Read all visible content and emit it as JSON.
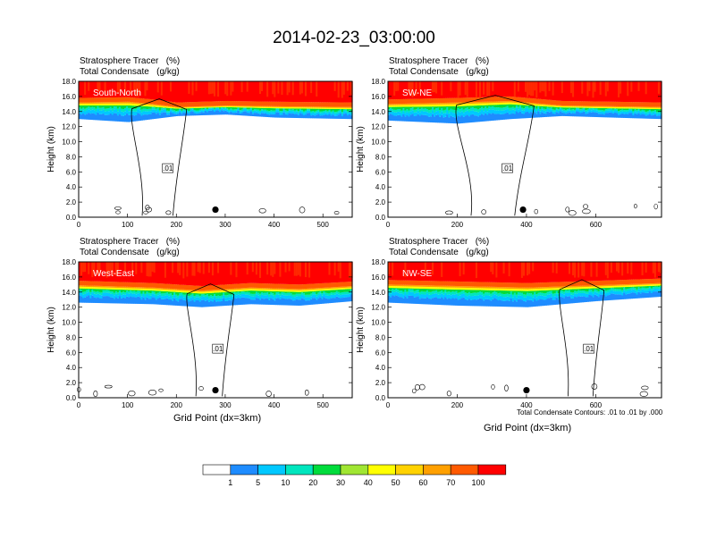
{
  "title": "2014-02-23_03:00:00",
  "panel_labels": {
    "line1": "Stratosphere Tracer   (%)",
    "line2": "Total Condensate   (g/kg)"
  },
  "contour_note": "Total Condensate Contours: .01 to .01 by .000",
  "colors": {
    "levels": [
      "#ffffff",
      "#1e8cff",
      "#00c8ff",
      "#00e6be",
      "#00dc3c",
      "#a0e632",
      "#ffff00",
      "#ffd200",
      "#ffa000",
      "#ff5a00",
      "#ff0000"
    ],
    "contour": "#000000"
  },
  "colorbar_labels": [
    "1",
    "5",
    "10",
    "20",
    "30",
    "40",
    "50",
    "60",
    "70",
    "100"
  ],
  "chart_data": [
    {
      "type": "heatmap",
      "name": "South-North",
      "ylabel": "Height (km)",
      "xlabel": "",
      "xlim": [
        0,
        560
      ],
      "ylim": [
        0,
        18
      ],
      "xticks": [
        "0",
        "100",
        "200",
        "300",
        "400",
        "500"
      ],
      "yticks": [
        "0.0",
        "2.0",
        "4.0",
        "6.0",
        "8.0",
        "10.0",
        "12.0",
        "14.0",
        "16.0",
        "18.0"
      ],
      "contour_label": ".01",
      "tropopause": [
        [
          0,
          15.2
        ],
        [
          100,
          15.3
        ],
        [
          150,
          15.0
        ],
        [
          200,
          14.6
        ],
        [
          300,
          14.8
        ],
        [
          400,
          14.7
        ],
        [
          560,
          14.6
        ]
      ],
      "anvil_base": [
        [
          0,
          13.0
        ],
        [
          100,
          12.6
        ],
        [
          200,
          13.4
        ],
        [
          300,
          13.6
        ],
        [
          400,
          13.2
        ],
        [
          560,
          13.0
        ]
      ],
      "storm_column": [
        130,
        200
      ],
      "marker_x": 280
    },
    {
      "type": "heatmap",
      "name": "SW-NE",
      "ylabel": "Height (km)",
      "xlabel": "",
      "xlim": [
        0,
        790
      ],
      "ylim": [
        0,
        18
      ],
      "xticks": [
        "0",
        "200",
        "400",
        "600"
      ],
      "yticks": [
        "0.0",
        "2.0",
        "4.0",
        "6.0",
        "8.0",
        "10.0",
        "12.0",
        "14.0",
        "16.0",
        "18.0"
      ],
      "contour_label": ".01",
      "tropopause": [
        [
          0,
          15.0
        ],
        [
          200,
          15.2
        ],
        [
          350,
          15.4
        ],
        [
          500,
          14.8
        ],
        [
          790,
          14.6
        ]
      ],
      "anvil_base": [
        [
          0,
          12.8
        ],
        [
          200,
          12.4
        ],
        [
          350,
          13.0
        ],
        [
          500,
          13.4
        ],
        [
          790,
          13.0
        ]
      ],
      "storm_column": [
        240,
        380
      ],
      "marker_x": 390
    },
    {
      "type": "heatmap",
      "name": "West-East",
      "ylabel": "Height (km)",
      "xlabel": "Grid Point (dx=3km)",
      "xlim": [
        0,
        560
      ],
      "ylim": [
        0,
        18
      ],
      "xticks": [
        "0",
        "100",
        "200",
        "300",
        "400",
        "500"
      ],
      "yticks": [
        "0.0",
        "2.0",
        "4.0",
        "6.0",
        "8.0",
        "10.0",
        "12.0",
        "14.0",
        "16.0",
        "18.0"
      ],
      "contour_label": ".01",
      "tropopause": [
        [
          0,
          14.9
        ],
        [
          150,
          14.6
        ],
        [
          250,
          14.2
        ],
        [
          350,
          14.6
        ],
        [
          450,
          14.4
        ],
        [
          560,
          14.8
        ]
      ],
      "anvil_base": [
        [
          0,
          12.6
        ],
        [
          150,
          12.4
        ],
        [
          250,
          12.0
        ],
        [
          350,
          12.4
        ],
        [
          450,
          12.2
        ],
        [
          560,
          12.8
        ]
      ],
      "storm_column": [
        240,
        300
      ],
      "marker_x": 280
    },
    {
      "type": "heatmap",
      "name": "NW-SE",
      "ylabel": "Height (km)",
      "xlabel": "Grid Point (dx=3km)",
      "xlim": [
        0,
        790
      ],
      "ylim": [
        0,
        18
      ],
      "xticks": [
        "0",
        "200",
        "400",
        "600"
      ],
      "yticks": [
        "0.0",
        "2.0",
        "4.0",
        "6.0",
        "8.0",
        "10.0",
        "12.0",
        "14.0",
        "16.0",
        "18.0"
      ],
      "contour_label": ".01",
      "tropopause": [
        [
          0,
          15.0
        ],
        [
          200,
          14.8
        ],
        [
          400,
          14.6
        ],
        [
          600,
          14.9
        ],
        [
          790,
          15.2
        ]
      ],
      "anvil_base": [
        [
          0,
          12.6
        ],
        [
          200,
          12.2
        ],
        [
          400,
          12.0
        ],
        [
          600,
          12.8
        ],
        [
          790,
          13.4
        ]
      ],
      "storm_column": [
        520,
        600
      ],
      "marker_x": 400
    }
  ]
}
